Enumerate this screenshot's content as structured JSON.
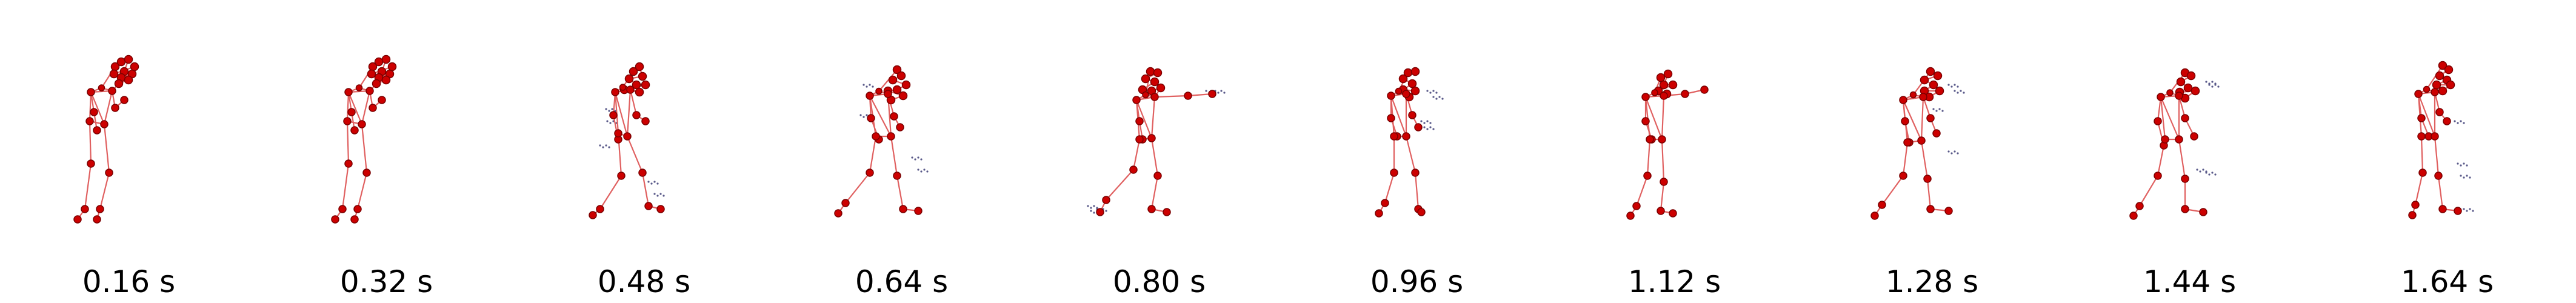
{
  "frames": [
    {
      "time_label": "0.16 s",
      "pose": "left-punch-guard"
    },
    {
      "time_label": "0.32 s",
      "pose": "left-punch-guard"
    },
    {
      "time_label": "0.48 s",
      "pose": "step-forward"
    },
    {
      "time_label": "0.64 s",
      "pose": "wide-stance-guard"
    },
    {
      "time_label": "0.80 s",
      "pose": "punch-extended"
    },
    {
      "time_label": "0.96 s",
      "pose": "guard-narrow"
    },
    {
      "time_label": "1.12 s",
      "pose": "punch-extended-short"
    },
    {
      "time_label": "1.28 s",
      "pose": "guard-wide"
    },
    {
      "time_label": "1.44 s",
      "pose": "guard-wide-back"
    },
    {
      "time_label": "1.64 s",
      "pose": "guard-upright"
    }
  ],
  "colors": {
    "joint_fill": "#cc0000",
    "joint_stroke": "#7a0000",
    "bone": "#e06060",
    "trace": "#5a5a8a",
    "caption": "#000000"
  }
}
